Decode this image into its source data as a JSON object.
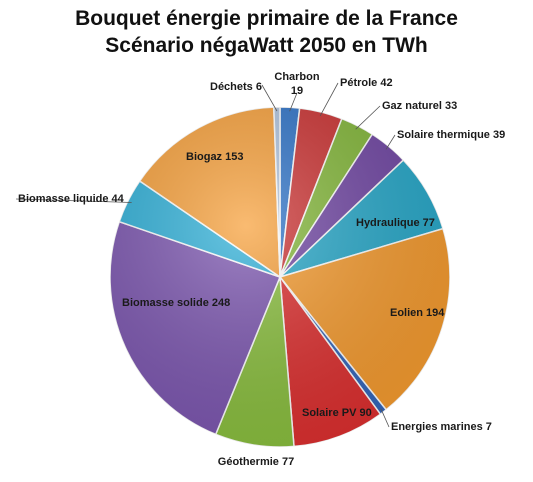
{
  "chart_data": {
    "type": "pie",
    "title": "Bouquet énergie primaire de la France",
    "subtitle": "Scénario négaWatt 2050 en TWh",
    "legend": "none",
    "slices": [
      {
        "label": "Charbon",
        "value": 19,
        "color": "#2e73c8"
      },
      {
        "label": "Pétrole",
        "value": 42,
        "color": "#cc3333"
      },
      {
        "label": "Gaz naturel",
        "value": 33,
        "color": "#84b83a"
      },
      {
        "label": "Solaire thermique",
        "value": 39,
        "color": "#7147a4"
      },
      {
        "label": "Hydraulique",
        "value": 77,
        "color": "#27a8c9"
      },
      {
        "label": "Eolien",
        "value": 194,
        "color": "#f59b2f"
      },
      {
        "label": "Energies marines",
        "value": 7,
        "color": "#3366bb"
      },
      {
        "label": "Solaire PV",
        "value": 90,
        "color": "#dd2f2f"
      },
      {
        "label": "Géothermie",
        "value": 77,
        "color": "#8abf3e"
      },
      {
        "label": "Biomasse solide",
        "value": 248,
        "color": "#7c56b0"
      },
      {
        "label": "Biomasse liquide",
        "value": 44,
        "color": "#2fb0d8"
      },
      {
        "label": "Biogaz",
        "value": 153,
        "color": "#f7a03a"
      },
      {
        "label": "Déchets",
        "value": 6,
        "color": "#b0c4de"
      }
    ]
  }
}
